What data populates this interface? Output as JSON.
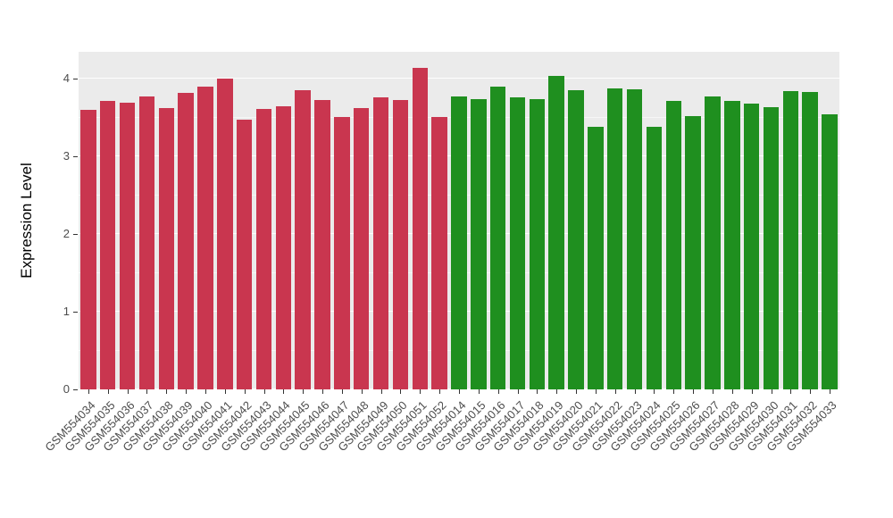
{
  "figure": {
    "background": "#FFFFFF",
    "panel_background": "#EBEBEB",
    "grid_color": "#FFFFFF",
    "tick_text_color": "#4D4D4D",
    "axis_title_color": "#000000"
  },
  "chart_data": {
    "type": "bar",
    "title": "",
    "xlabel": "",
    "ylabel": "Expression Level",
    "ylim": [
      0,
      4.35
    ],
    "yticks": [
      0,
      1,
      2,
      3,
      4
    ],
    "grid": true,
    "legend": false,
    "group_colors": {
      "red": "#C9364F",
      "green": "#1F8F1F"
    },
    "bars": [
      {
        "label": "GSM554034",
        "value": 3.6,
        "group": "red"
      },
      {
        "label": "GSM554035",
        "value": 3.72,
        "group": "red"
      },
      {
        "label": "GSM554036",
        "value": 3.69,
        "group": "red"
      },
      {
        "label": "GSM554037",
        "value": 3.77,
        "group": "red"
      },
      {
        "label": "GSM554038",
        "value": 3.62,
        "group": "red"
      },
      {
        "label": "GSM554039",
        "value": 3.82,
        "group": "red"
      },
      {
        "label": "GSM554040",
        "value": 3.9,
        "group": "red"
      },
      {
        "label": "GSM554041",
        "value": 4.0,
        "group": "red"
      },
      {
        "label": "GSM554042",
        "value": 3.47,
        "group": "red"
      },
      {
        "label": "GSM554043",
        "value": 3.61,
        "group": "red"
      },
      {
        "label": "GSM554044",
        "value": 3.65,
        "group": "red"
      },
      {
        "label": "GSM554045",
        "value": 3.85,
        "group": "red"
      },
      {
        "label": "GSM554046",
        "value": 3.73,
        "group": "red"
      },
      {
        "label": "GSM554047",
        "value": 3.51,
        "group": "red"
      },
      {
        "label": "GSM554048",
        "value": 3.63,
        "group": "red"
      },
      {
        "label": "GSM554049",
        "value": 3.76,
        "group": "red"
      },
      {
        "label": "GSM554050",
        "value": 3.73,
        "group": "red"
      },
      {
        "label": "GSM554051",
        "value": 4.14,
        "group": "red"
      },
      {
        "label": "GSM554052",
        "value": 3.51,
        "group": "red"
      },
      {
        "label": "GSM554014",
        "value": 3.78,
        "group": "green"
      },
      {
        "label": "GSM554015",
        "value": 3.74,
        "group": "green"
      },
      {
        "label": "GSM554016",
        "value": 3.9,
        "group": "green"
      },
      {
        "label": "GSM554017",
        "value": 3.76,
        "group": "green"
      },
      {
        "label": "GSM554018",
        "value": 3.74,
        "group": "green"
      },
      {
        "label": "GSM554019",
        "value": 4.04,
        "group": "green"
      },
      {
        "label": "GSM554020",
        "value": 3.86,
        "group": "green"
      },
      {
        "label": "GSM554021",
        "value": 3.38,
        "group": "green"
      },
      {
        "label": "GSM554022",
        "value": 3.88,
        "group": "green"
      },
      {
        "label": "GSM554023",
        "value": 3.87,
        "group": "green"
      },
      {
        "label": "GSM554024",
        "value": 3.38,
        "group": "green"
      },
      {
        "label": "GSM554025",
        "value": 3.72,
        "group": "green"
      },
      {
        "label": "GSM554026",
        "value": 3.52,
        "group": "green"
      },
      {
        "label": "GSM554027",
        "value": 3.78,
        "group": "green"
      },
      {
        "label": "GSM554028",
        "value": 3.72,
        "group": "green"
      },
      {
        "label": "GSM554029",
        "value": 3.68,
        "group": "green"
      },
      {
        "label": "GSM554030",
        "value": 3.64,
        "group": "green"
      },
      {
        "label": "GSM554031",
        "value": 3.84,
        "group": "green"
      },
      {
        "label": "GSM554032",
        "value": 3.83,
        "group": "green"
      },
      {
        "label": "GSM554033",
        "value": 3.54,
        "group": "green"
      }
    ]
  }
}
